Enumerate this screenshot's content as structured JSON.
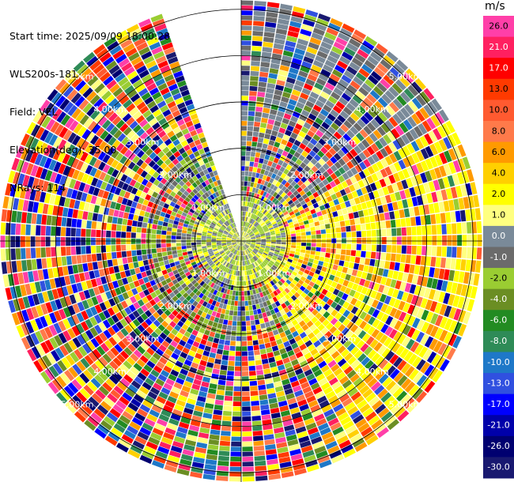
{
  "header": {
    "start_time": "Start time: 2025/09/09 18:00:28",
    "instrument": "WLS200s-181",
    "field": "Field: VEL",
    "elevation": "Elevation(deg): 35.00",
    "nrays": "NRays: 114"
  },
  "colorbar": {
    "unit": "m/s",
    "levels": [
      {
        "label": "26.0",
        "color": "#ff3fa8"
      },
      {
        "label": "21.0",
        "color": "#ff2060"
      },
      {
        "label": "17.0",
        "color": "#ff0000"
      },
      {
        "label": "13.0",
        "color": "#ff3a00"
      },
      {
        "label": "10.0",
        "color": "#ff5a30"
      },
      {
        "label": "8.0",
        "color": "#ff7a4a"
      },
      {
        "label": "6.0",
        "color": "#ff9a00"
      },
      {
        "label": "4.0",
        "color": "#ffd000"
      },
      {
        "label": "2.0",
        "color": "#ffff00"
      },
      {
        "label": "1.0",
        "color": "#ffff80"
      },
      {
        "label": "0.0",
        "color": "#7a8a99"
      },
      {
        "label": "-1.0",
        "color": "#6b6b6b"
      },
      {
        "label": "-2.0",
        "color": "#9acd32"
      },
      {
        "label": "-4.0",
        "color": "#6b8e23"
      },
      {
        "label": "-6.0",
        "color": "#228b22"
      },
      {
        "label": "-8.0",
        "color": "#2e8b57"
      },
      {
        "label": "-10.0",
        "color": "#1e78c8"
      },
      {
        "label": "-13.0",
        "color": "#3050e0"
      },
      {
        "label": "-17.0",
        "color": "#0000ff"
      },
      {
        "label": "-21.0",
        "color": "#0000aa"
      },
      {
        "label": "-26.0",
        "color": "#000070"
      },
      {
        "label": "-30.0",
        "color": "#191970"
      }
    ]
  },
  "chart_data": {
    "type": "heatmap",
    "projection": "polar-ppi",
    "field": "VEL",
    "units": "m/s",
    "n_rays": 114,
    "elevation_deg": 35.0,
    "max_range_km": 5.2,
    "missing_sector_deg": [
      340,
      360
    ],
    "range_rings_km": [
      1.0,
      2.0,
      3.0,
      4.0,
      5.0
    ],
    "range_ring_labels": [
      "1.00km",
      "2.00km",
      "3.00km",
      "4.00km",
      "5.00km"
    ],
    "sector_pattern": [
      {
        "az_start": 0,
        "az_end": 60,
        "dominant": "positive-mixed"
      },
      {
        "az_start": 60,
        "az_end": 150,
        "dominant": "positive-high"
      },
      {
        "az_start": 150,
        "az_end": 240,
        "dominant": "mixed"
      },
      {
        "az_start": 240,
        "az_end": 340,
        "dominant": "mixed"
      }
    ],
    "near_field_km": 1.0,
    "near_field_dominant": "near-zero"
  }
}
